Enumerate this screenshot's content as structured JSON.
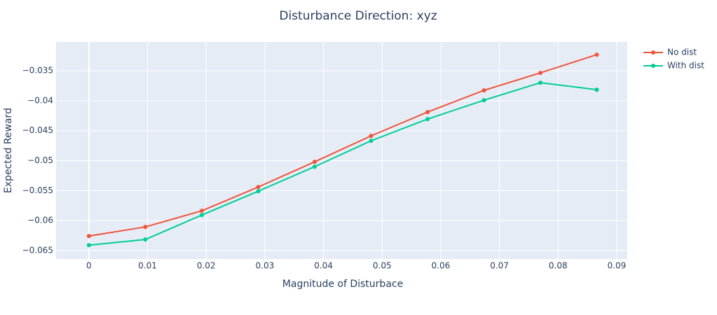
{
  "chart_data": {
    "type": "line",
    "title": "Disturbance Direction: xyz",
    "x_label": "Magnitude of Disturbace",
    "y_label": "Expected Reward",
    "x": [
      0,
      0.00962,
      0.01925,
      0.02887,
      0.03849,
      0.04811,
      0.05774,
      0.06736,
      0.07698,
      0.0866
    ],
    "series": [
      {
        "name": "No dist",
        "color": "#EF553B",
        "values": [
          -0.06257,
          -0.06105,
          -0.05836,
          -0.05439,
          -0.05019,
          -0.04586,
          -0.04189,
          -0.03827,
          -0.03535,
          -0.03231
        ]
      },
      {
        "name": "With dist",
        "color": "#00CC96",
        "values": [
          -0.06409,
          -0.06315,
          -0.05907,
          -0.05509,
          -0.051,
          -0.04668,
          -0.04306,
          -0.03991,
          -0.03699,
          -0.03815
        ]
      }
    ],
    "xlim": [
      -0.0056,
      0.0918
    ],
    "xticks": [
      0,
      0.01,
      0.02,
      0.03,
      0.04,
      0.05,
      0.06,
      0.07,
      0.08,
      0.09
    ],
    "ylim": [
      -0.0664,
      -0.0302
    ],
    "yticks": [
      {
        "value": -0.065,
        "label": "−0.065"
      },
      {
        "value": -0.06,
        "label": "−0.06"
      },
      {
        "value": -0.055,
        "label": "−0.055"
      },
      {
        "value": -0.05,
        "label": "−0.05"
      },
      {
        "value": -0.045,
        "label": "−0.045"
      },
      {
        "value": -0.04,
        "label": "−0.04"
      },
      {
        "value": -0.035,
        "label": "−0.035"
      }
    ],
    "grid": true,
    "legend": "top-right"
  }
}
